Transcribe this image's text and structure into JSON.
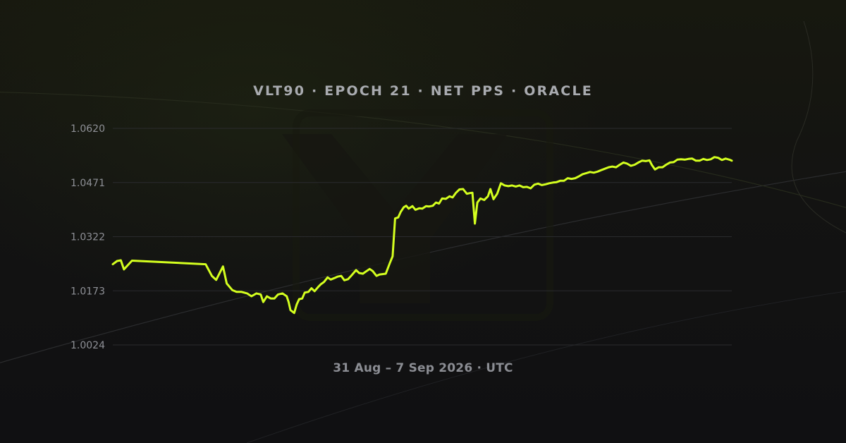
{
  "title": "VLT90 · EPOCH 21 · NET PPS · ORACLE",
  "subtitle": "31 Aug – 7 Sep 2026 · UTC",
  "colors": {
    "line": "#d4ff1f",
    "background": "#111113",
    "grid": "#2a2b2e",
    "text": "#a9abb0"
  },
  "chart_data": {
    "type": "line",
    "title": "VLT90 · EPOCH 21 · NET PPS · ORACLE",
    "xlabel": "31 Aug – 7 Sep 2026 · UTC",
    "ylabel": "",
    "yticks": [
      "1.0024",
      "1.0173",
      "1.0322",
      "1.0471",
      "1.0620"
    ],
    "ylim": [
      1.0024,
      1.062
    ],
    "xlim": [
      0,
      1
    ],
    "grid": true,
    "series": [
      {
        "points": [
          [
            0.0,
            1.0246
          ],
          [
            0.007,
            1.0255
          ],
          [
            0.013,
            1.0257
          ],
          [
            0.018,
            1.0232
          ],
          [
            0.031,
            1.0256
          ],
          [
            0.15,
            1.0246
          ],
          [
            0.16,
            1.0214
          ],
          [
            0.167,
            1.0203
          ],
          [
            0.178,
            1.024
          ],
          [
            0.184,
            1.0193
          ],
          [
            0.193,
            1.0175
          ],
          [
            0.2,
            1.017
          ],
          [
            0.208,
            1.017
          ],
          [
            0.217,
            1.0166
          ],
          [
            0.224,
            1.0158
          ],
          [
            0.232,
            1.0166
          ],
          [
            0.239,
            1.0163
          ],
          [
            0.243,
            1.0142
          ],
          [
            0.249,
            1.0158
          ],
          [
            0.255,
            1.0152
          ],
          [
            0.261,
            1.0152
          ],
          [
            0.267,
            1.0163
          ],
          [
            0.274,
            1.0166
          ],
          [
            0.281,
            1.0158
          ],
          [
            0.284,
            1.0142
          ],
          [
            0.287,
            1.012
          ],
          [
            0.293,
            1.0112
          ],
          [
            0.297,
            1.0135
          ],
          [
            0.301,
            1.015
          ],
          [
            0.306,
            1.0152
          ],
          [
            0.31,
            1.0168
          ],
          [
            0.316,
            1.017
          ],
          [
            0.321,
            1.018
          ],
          [
            0.326,
            1.0172
          ],
          [
            0.332,
            1.0184
          ],
          [
            0.336,
            1.0191
          ],
          [
            0.341,
            1.0197
          ],
          [
            0.347,
            1.021
          ],
          [
            0.352,
            1.0204
          ],
          [
            0.358,
            1.0208
          ],
          [
            0.363,
            1.0212
          ],
          [
            0.369,
            1.0214
          ],
          [
            0.374,
            1.0202
          ],
          [
            0.38,
            1.0205
          ],
          [
            0.385,
            1.0214
          ],
          [
            0.393,
            1.023
          ],
          [
            0.398,
            1.0222
          ],
          [
            0.404,
            1.022
          ],
          [
            0.409,
            1.0226
          ],
          [
            0.415,
            1.0233
          ],
          [
            0.42,
            1.0227
          ],
          [
            0.426,
            1.0214
          ],
          [
            0.431,
            1.0218
          ],
          [
            0.441,
            1.022
          ],
          [
            0.447,
            1.0247
          ],
          [
            0.452,
            1.0268
          ],
          [
            0.456,
            1.0372
          ],
          [
            0.461,
            1.0375
          ],
          [
            0.465,
            1.039
          ],
          [
            0.47,
            1.0403
          ],
          [
            0.474,
            1.0407
          ],
          [
            0.478,
            1.0399
          ],
          [
            0.484,
            1.0406
          ],
          [
            0.489,
            1.0396
          ],
          [
            0.495,
            1.04
          ],
          [
            0.5,
            1.0399
          ],
          [
            0.506,
            1.0406
          ],
          [
            0.511,
            1.0405
          ],
          [
            0.517,
            1.0407
          ],
          [
            0.522,
            1.0416
          ],
          [
            0.527,
            1.0413
          ],
          [
            0.532,
            1.0427
          ],
          [
            0.538,
            1.0426
          ],
          [
            0.544,
            1.0433
          ],
          [
            0.549,
            1.043
          ],
          [
            0.554,
            1.0442
          ],
          [
            0.56,
            1.0452
          ],
          [
            0.566,
            1.0453
          ],
          [
            0.572,
            1.044
          ],
          [
            0.577,
            1.0442
          ],
          [
            0.581,
            1.0443
          ],
          [
            0.585,
            1.0358
          ],
          [
            0.589,
            1.0416
          ],
          [
            0.594,
            1.0427
          ],
          [
            0.6,
            1.0423
          ],
          [
            0.606,
            1.0433
          ],
          [
            0.61,
            1.0453
          ],
          [
            0.615,
            1.0425
          ],
          [
            0.621,
            1.044
          ],
          [
            0.627,
            1.0469
          ],
          [
            0.633,
            1.0463
          ],
          [
            0.639,
            1.0461
          ],
          [
            0.645,
            1.0463
          ],
          [
            0.651,
            1.046
          ],
          [
            0.657,
            1.0463
          ],
          [
            0.663,
            1.0458
          ],
          [
            0.669,
            1.0459
          ],
          [
            0.675,
            1.0455
          ],
          [
            0.681,
            1.0465
          ],
          [
            0.687,
            1.0468
          ],
          [
            0.693,
            1.0464
          ],
          [
            0.699,
            1.0466
          ],
          [
            0.705,
            1.0469
          ],
          [
            0.711,
            1.0471
          ],
          [
            0.717,
            1.0472
          ],
          [
            0.723,
            1.0476
          ],
          [
            0.729,
            1.0476
          ],
          [
            0.735,
            1.0483
          ],
          [
            0.741,
            1.0481
          ],
          [
            0.747,
            1.0483
          ],
          [
            0.753,
            1.0488
          ],
          [
            0.759,
            1.0494
          ],
          [
            0.765,
            1.0497
          ],
          [
            0.771,
            1.05
          ],
          [
            0.777,
            1.0498
          ],
          [
            0.783,
            1.0501
          ],
          [
            0.789,
            1.0505
          ],
          [
            0.795,
            1.0509
          ],
          [
            0.801,
            1.0513
          ],
          [
            0.807,
            1.0515
          ],
          [
            0.813,
            1.0513
          ],
          [
            0.819,
            1.052
          ],
          [
            0.825,
            1.0526
          ],
          [
            0.831,
            1.0523
          ],
          [
            0.837,
            1.0517
          ],
          [
            0.843,
            1.052
          ],
          [
            0.849,
            1.0526
          ],
          [
            0.855,
            1.0531
          ],
          [
            0.861,
            1.053
          ],
          [
            0.867,
            1.0532
          ],
          [
            0.871,
            1.0519
          ],
          [
            0.876,
            1.0507
          ],
          [
            0.882,
            1.0513
          ],
          [
            0.888,
            1.0513
          ],
          [
            0.894,
            1.052
          ],
          [
            0.9,
            1.0526
          ],
          [
            0.906,
            1.0527
          ],
          [
            0.912,
            1.0534
          ],
          [
            0.918,
            1.0535
          ],
          [
            0.924,
            1.0534
          ],
          [
            0.93,
            1.0536
          ],
          [
            0.936,
            1.0537
          ],
          [
            0.942,
            1.0531
          ],
          [
            0.948,
            1.0531
          ],
          [
            0.954,
            1.0536
          ],
          [
            0.96,
            1.0533
          ],
          [
            0.966,
            1.0535
          ],
          [
            0.972,
            1.0541
          ],
          [
            0.978,
            1.0539
          ],
          [
            0.984,
            1.0533
          ],
          [
            0.99,
            1.0537
          ],
          [
            0.996,
            1.0534
          ],
          [
            1.0,
            1.0531
          ]
        ]
      }
    ]
  }
}
